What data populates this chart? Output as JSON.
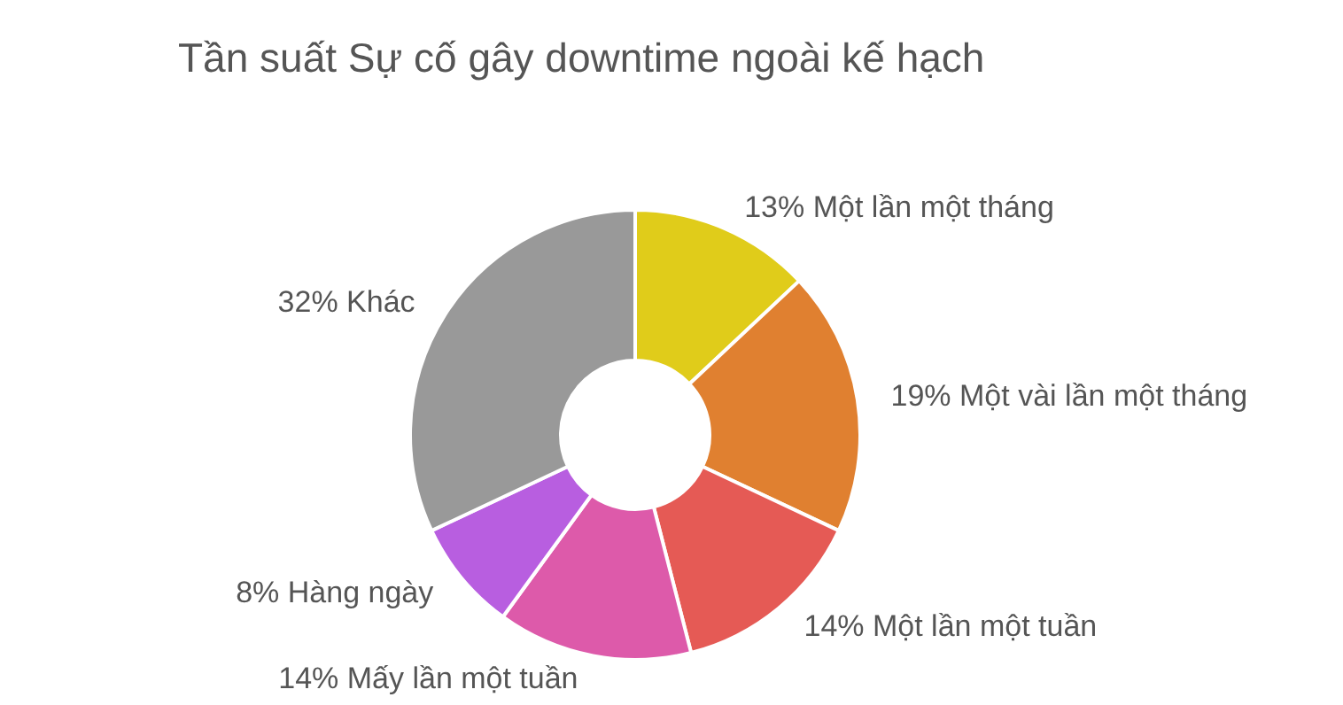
{
  "chart_data": {
    "type": "donut",
    "title": "Tần suất Sự cố gây downtime ngoài kế hạch",
    "categories": [
      "Một lần một tháng",
      "Một vài lần một tháng",
      "Một lần một tuần",
      "Mấy lần một tuần",
      "Hàng ngày",
      "Khác"
    ],
    "values": [
      13,
      19,
      14,
      14,
      8,
      32
    ],
    "value_labels": [
      "13%",
      "19%",
      "14%",
      "14%",
      "8%",
      "32%"
    ],
    "colors": [
      "#e0cc1a",
      "#e08030",
      "#e55a55",
      "#dd5aaa",
      "#b85ee0",
      "#999999"
    ]
  }
}
